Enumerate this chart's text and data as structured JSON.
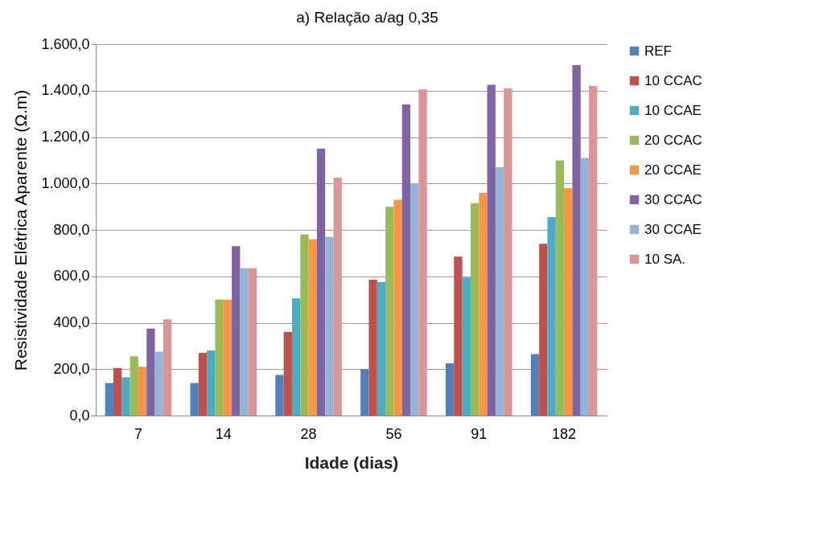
{
  "chart_data": {
    "type": "bar",
    "title": "a)        Relação a/ag 0,35",
    "xlabel": "Idade (dias)",
    "ylabel": "Resistividade Elétrica Aparente (Ω.m)",
    "categories": [
      "7",
      "14",
      "28",
      "56",
      "91",
      "182"
    ],
    "series": [
      {
        "name": "REF",
        "color": "#4f81bd",
        "values": [
          140,
          140,
          175,
          200,
          225,
          265
        ]
      },
      {
        "name": "10 CCAC",
        "color": "#c0504d",
        "values": [
          205,
          270,
          360,
          585,
          685,
          740
        ]
      },
      {
        "name": "10 CCAE",
        "color": "#4bacc6",
        "values": [
          165,
          280,
          505,
          575,
          595,
          855
        ]
      },
      {
        "name": "20 CCAC",
        "color": "#9bbb59",
        "values": [
          255,
          500,
          780,
          900,
          915,
          1100
        ]
      },
      {
        "name": "20 CCAE",
        "color": "#f79646",
        "values": [
          210,
          500,
          760,
          930,
          960,
          980
        ]
      },
      {
        "name": "30 CCAC",
        "color": "#8064a2",
        "values": [
          375,
          730,
          1150,
          1340,
          1425,
          1510
        ]
      },
      {
        "name": "30 CCAE",
        "color": "#95b3d7",
        "values": [
          275,
          635,
          770,
          1000,
          1070,
          1110
        ]
      },
      {
        "name": "10 SA.",
        "color": "#d99694",
        "values": [
          415,
          635,
          1025,
          1405,
          1410,
          1420
        ]
      }
    ],
    "ylim": [
      0,
      1600
    ],
    "yticks": [
      {
        "value": 0,
        "label": "0,0"
      },
      {
        "value": 200,
        "label": "200,0"
      },
      {
        "value": 400,
        "label": "400,0"
      },
      {
        "value": 600,
        "label": "600,0"
      },
      {
        "value": 800,
        "label": "800,0"
      },
      {
        "value": 1000,
        "label": "1.000,0"
      },
      {
        "value": 1200,
        "label": "1.200,0"
      },
      {
        "value": 1400,
        "label": "1.400,0"
      },
      {
        "value": 1600,
        "label": "1.600,0"
      }
    ],
    "grid": "y",
    "legend": "right"
  }
}
